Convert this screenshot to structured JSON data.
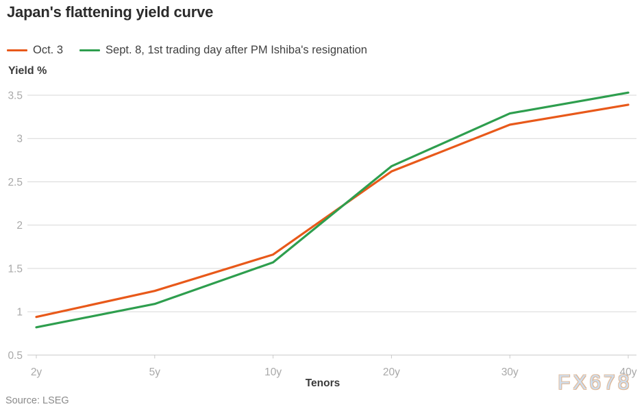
{
  "header": {
    "title": "Japan's flattening yield curve"
  },
  "legend": [
    {
      "label": "Oct. 3",
      "color": "#e8591a"
    },
    {
      "label": "Sept. 8, 1st trading day after PM Ishiba's resignation",
      "color": "#2e9e4e"
    }
  ],
  "axes": {
    "y_title": "Yield %",
    "x_title": "Tenors",
    "y_tick_labels": [
      "0.5",
      "1",
      "1.5",
      "2",
      "2.5",
      "3",
      "3.5"
    ],
    "x_tick_labels": [
      "2y",
      "5y",
      "10y",
      "20y",
      "30y",
      "40y"
    ]
  },
  "source": "Source: LSEG",
  "watermark": "FX678",
  "colors": {
    "oct3_line": "#e8591a",
    "sept8_line": "#2e9e4e",
    "gridline": "#d7d7d7",
    "axis_line": "#c9c9c9",
    "tick_label": "#a8a8a8",
    "watermark_blue": "#cfdeee",
    "watermark_tan": "#dcb493"
  },
  "chart_data": {
    "type": "line",
    "title": "Japan's flattening yield curve",
    "xlabel": "Tenors",
    "ylabel": "Yield %",
    "categories": [
      "2y",
      "5y",
      "10y",
      "20y",
      "30y",
      "40y"
    ],
    "series": [
      {
        "name": "Oct. 3",
        "color": "#e8591a",
        "values": [
          0.94,
          1.24,
          1.66,
          2.62,
          3.16,
          3.39
        ]
      },
      {
        "name": "Sept. 8, 1st trading day after PM Ishiba's resignation",
        "color": "#2e9e4e",
        "values": [
          0.82,
          1.09,
          1.57,
          2.68,
          3.29,
          3.53
        ]
      }
    ],
    "ylim": [
      0.5,
      3.5
    ],
    "yticks": [
      0.5,
      1,
      1.5,
      2,
      2.5,
      3,
      3.5
    ],
    "grid": true,
    "legend_position": "top-left"
  }
}
